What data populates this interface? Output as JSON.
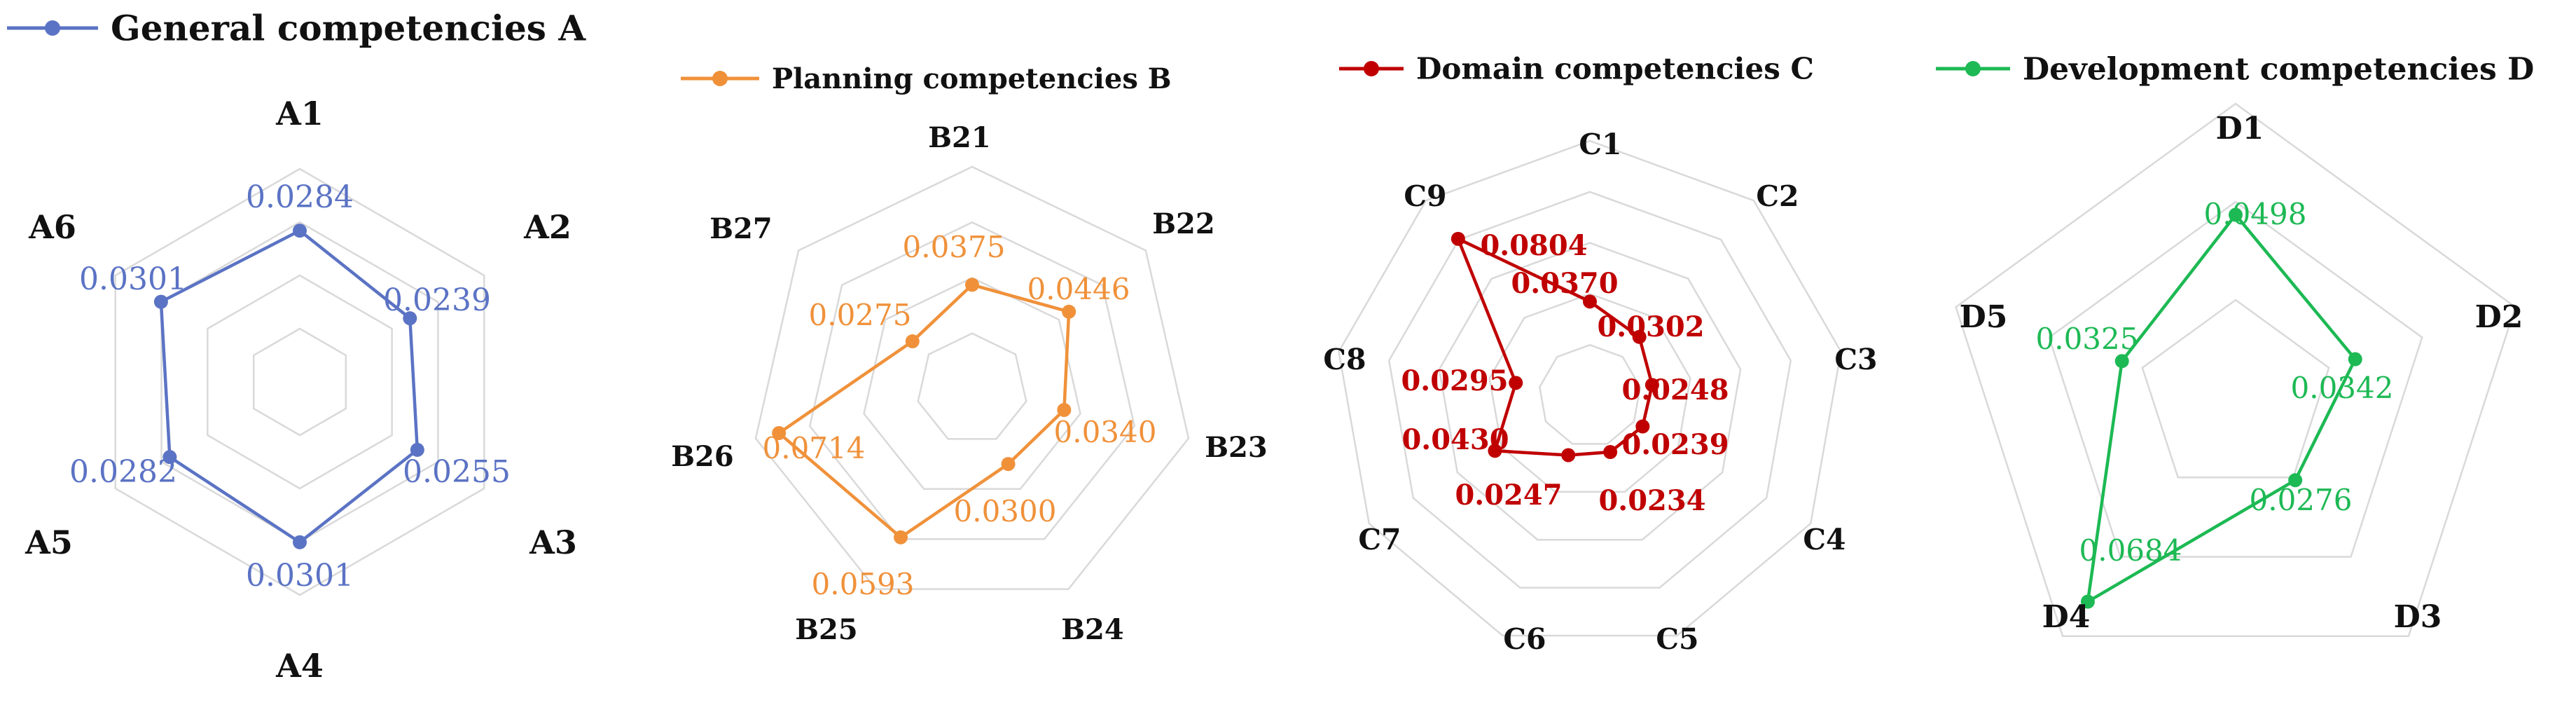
{
  "chart_data": [
    {
      "type": "radar",
      "legend": "General competencies A",
      "color": "#5b73c4",
      "max": 0.04,
      "rings": 4,
      "categories": [
        "A1",
        "A2",
        "A3",
        "A4",
        "A5",
        "A6"
      ],
      "values": [
        0.0284,
        0.0239,
        0.0255,
        0.0301,
        0.0282,
        0.0301
      ],
      "labels": [
        "0.0284",
        "0.0239",
        "0.0255",
        "0.0301",
        "0.0282",
        "0.0301"
      ]
    },
    {
      "type": "radar",
      "legend": "Planning competencies B",
      "color": "#f0913a",
      "max": 0.08,
      "rings": 4,
      "categories": [
        "B21",
        "B22",
        "B23",
        "B24",
        "B25",
        "B26",
        "B27"
      ],
      "values": [
        0.0375,
        0.0446,
        0.034,
        0.03,
        0.0593,
        0.0714,
        0.0275
      ],
      "labels": [
        "0.0375",
        "0.0446",
        "0.0340",
        "0.0300",
        "0.0593",
        "0.0714",
        "0.0275"
      ]
    },
    {
      "type": "radar",
      "legend": "Domain competencies C",
      "color": "#c00000",
      "max": 0.1,
      "rings": 5,
      "categories": [
        "C1",
        "C2",
        "C3",
        "C4",
        "C5",
        "C6",
        "C7",
        "C8",
        "C9"
      ],
      "values": [
        0.037,
        0.0302,
        0.0248,
        0.0239,
        0.0234,
        0.0247,
        0.043,
        0.0295,
        0.0804
      ],
      "labels": [
        "0.0370",
        "0.0302",
        "0.0248",
        "0.0239",
        "0.0234",
        "0.0247",
        "0.0430",
        "0.0295",
        "0.0804"
      ]
    },
    {
      "type": "radar",
      "legend": "Development competencies D",
      "color": "#1db954",
      "max": 0.08,
      "rings": 3,
      "categories": [
        "D1",
        "D2",
        "D3",
        "D4",
        "D5"
      ],
      "values": [
        0.0498,
        0.0342,
        0.0276,
        0.0684,
        0.0325
      ],
      "labels": [
        "0.0498",
        "0.0342",
        "0.0276",
        "0.0684",
        "0.0325"
      ]
    }
  ]
}
